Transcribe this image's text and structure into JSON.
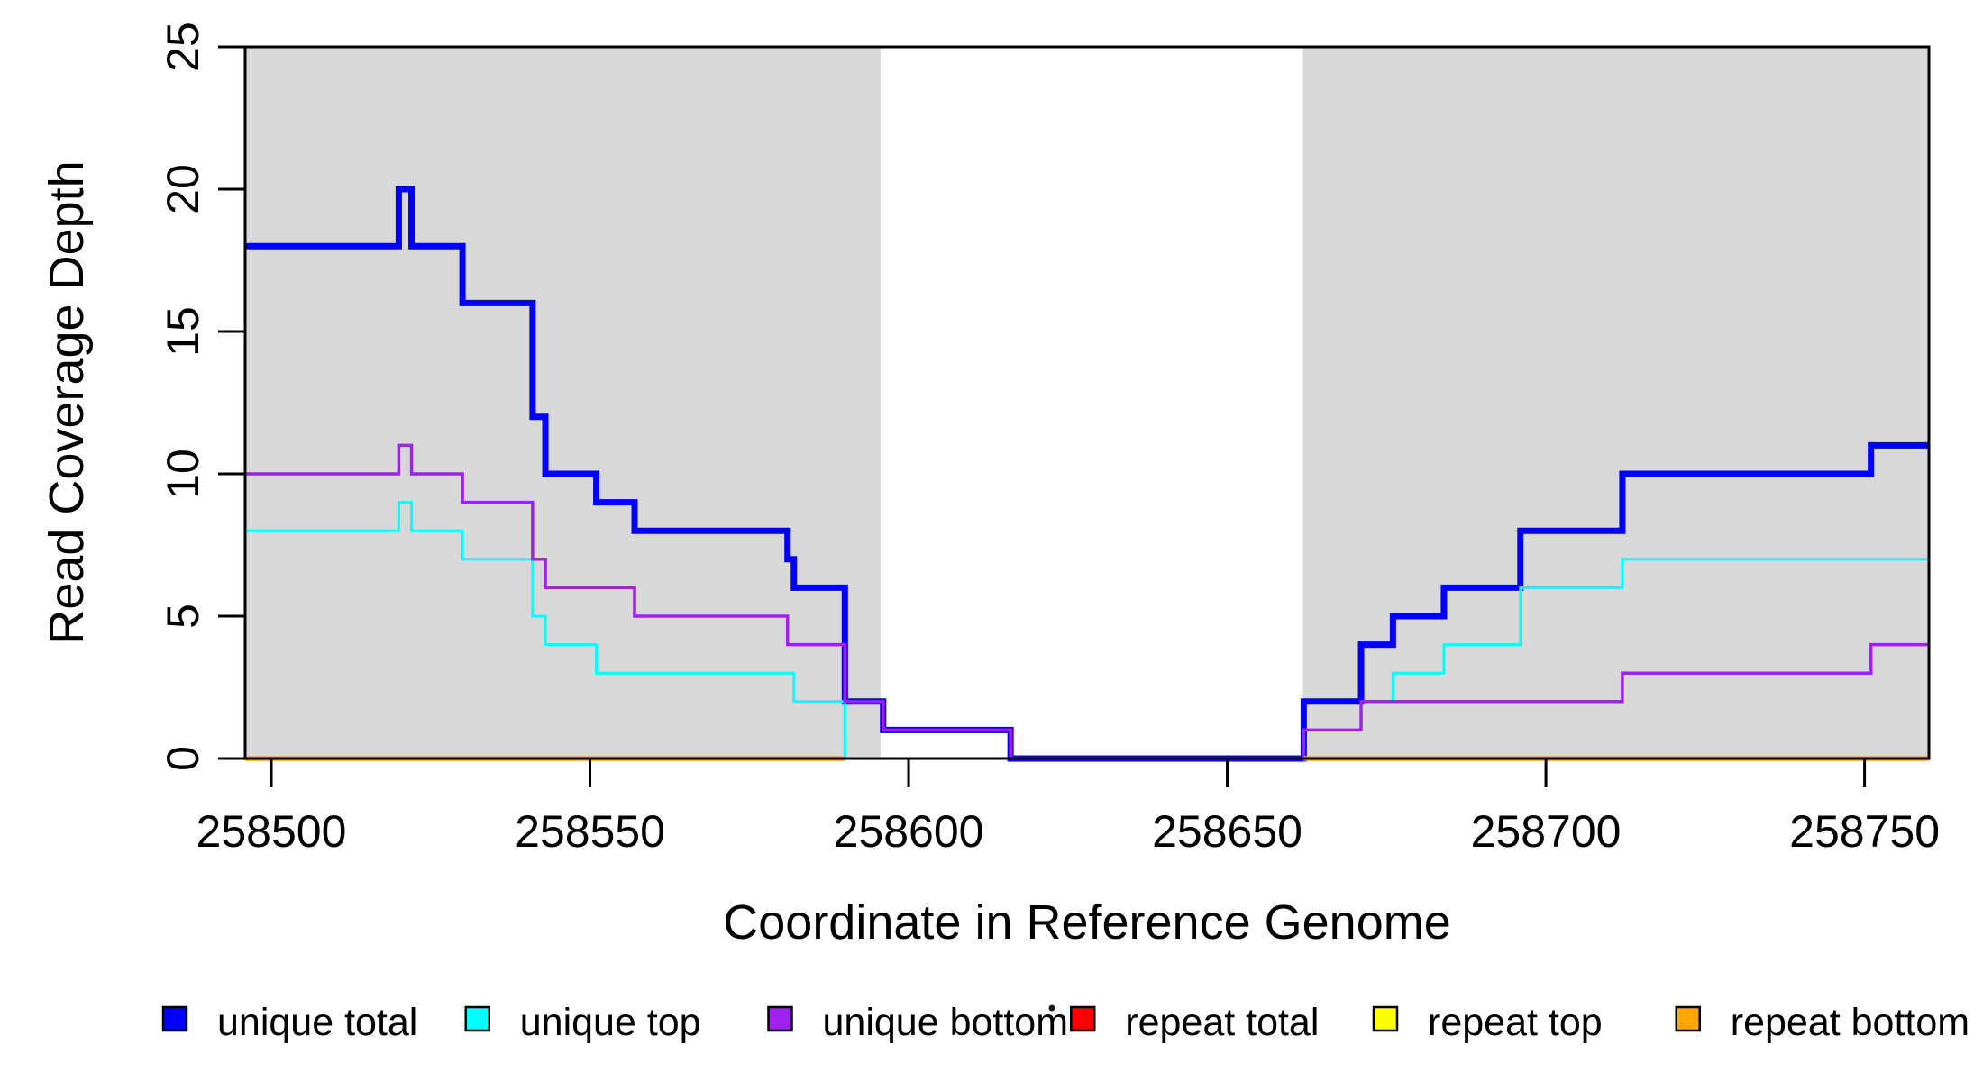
{
  "chart_data": {
    "type": "line",
    "subtype": "step",
    "title": "",
    "xlabel": "Coordinate in Reference Genome",
    "ylabel": "Read Coverage Depth",
    "xlim": [
      258495.9,
      258760.1
    ],
    "ylim": [
      0,
      25
    ],
    "x_ticks": [
      258500,
      258550,
      258600,
      258650,
      258700,
      258750
    ],
    "y_ticks": [
      0,
      5,
      10,
      15,
      20,
      25
    ],
    "grid": false,
    "legend_position": "bottom-outside",
    "shaded_regions": [
      {
        "name": "repeat-region-left",
        "x0": 258495.9,
        "x1": 258595.6,
        "color": "#D8D8D8"
      },
      {
        "name": "repeat-region-right",
        "x0": 258661.9,
        "x1": 258760.1,
        "color": "#D8D8D8"
      }
    ],
    "series": [
      {
        "name": "unique total",
        "color": "#0000FF",
        "width": 7,
        "start_value": 18,
        "steps": [
          [
            258520,
            20
          ],
          [
            258522,
            18
          ],
          [
            258530,
            16
          ],
          [
            258541,
            12
          ],
          [
            258543,
            10
          ],
          [
            258551,
            9
          ],
          [
            258557,
            8
          ],
          [
            258581,
            7
          ],
          [
            258582,
            6
          ],
          [
            258590,
            2
          ],
          [
            258596,
            1
          ],
          [
            258616,
            0
          ],
          [
            258662,
            2
          ],
          [
            258671,
            4
          ],
          [
            258676,
            5
          ],
          [
            258684,
            6
          ],
          [
            258696,
            8
          ],
          [
            258712,
            10
          ],
          [
            258751,
            11
          ]
        ]
      },
      {
        "name": "unique top",
        "color": "#00FFFF",
        "width": 3,
        "start_value": 8,
        "steps": [
          [
            258520,
            9
          ],
          [
            258522,
            8
          ],
          [
            258530,
            7
          ],
          [
            258541,
            5
          ],
          [
            258543,
            4
          ],
          [
            258551,
            3
          ],
          [
            258582,
            2
          ],
          [
            258590,
            0
          ],
          [
            258662,
            1
          ],
          [
            258671,
            2
          ],
          [
            258676,
            3
          ],
          [
            258684,
            4
          ],
          [
            258696,
            6
          ],
          [
            258712,
            7
          ]
        ]
      },
      {
        "name": "unique bottom",
        "color": "#A020F0",
        "width": 3.5,
        "start_value": 10,
        "steps": [
          [
            258520,
            11
          ],
          [
            258522,
            10
          ],
          [
            258530,
            9
          ],
          [
            258541,
            7
          ],
          [
            258543,
            6
          ],
          [
            258557,
            5
          ],
          [
            258581,
            4
          ],
          [
            258590,
            2
          ],
          [
            258596,
            1
          ],
          [
            258616,
            0
          ],
          [
            258662,
            1
          ],
          [
            258671,
            2
          ],
          [
            258712,
            3
          ],
          [
            258751,
            4
          ]
        ]
      },
      {
        "name": "repeat total",
        "color": "#FF0000",
        "width": 3,
        "start_value": 0,
        "steps": []
      },
      {
        "name": "repeat top",
        "color": "#FFFF00",
        "width": 3,
        "start_value": 0,
        "steps": []
      },
      {
        "name": "repeat bottom",
        "color": "#FFA500",
        "width": 5.5,
        "start_value": 0,
        "steps": [],
        "draw_segments": [
          [
            258495.9,
            258590
          ],
          [
            258662,
            258760.1
          ]
        ]
      }
    ],
    "draw_order": [
      "repeat total",
      "repeat top",
      "unique total",
      "unique top",
      "unique bottom",
      "repeat bottom"
    ]
  }
}
